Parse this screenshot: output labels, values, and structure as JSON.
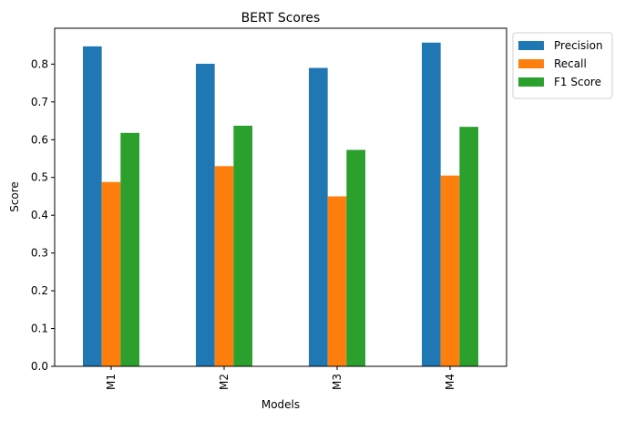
{
  "chart_data": {
    "type": "bar",
    "title": "BERT Scores",
    "xlabel": "Models",
    "ylabel": "Score",
    "categories": [
      "M1",
      "M2",
      "M3",
      "M4"
    ],
    "ylim": [
      0,
      0.895
    ],
    "yticks": [
      "0.0",
      "0.1",
      "0.2",
      "0.3",
      "0.4",
      "0.5",
      "0.6",
      "0.7",
      "0.8"
    ],
    "grid": false,
    "legend_position": "outside-top-right",
    "series": [
      {
        "name": "Precision",
        "color": "#1f77b4",
        "values": [
          0.847,
          0.801,
          0.79,
          0.857
        ]
      },
      {
        "name": "Recall",
        "color": "#ff7f0e",
        "values": [
          0.488,
          0.53,
          0.45,
          0.505
        ]
      },
      {
        "name": "F1 Score",
        "color": "#2ca02c",
        "values": [
          0.618,
          0.637,
          0.573,
          0.634
        ]
      }
    ]
  }
}
